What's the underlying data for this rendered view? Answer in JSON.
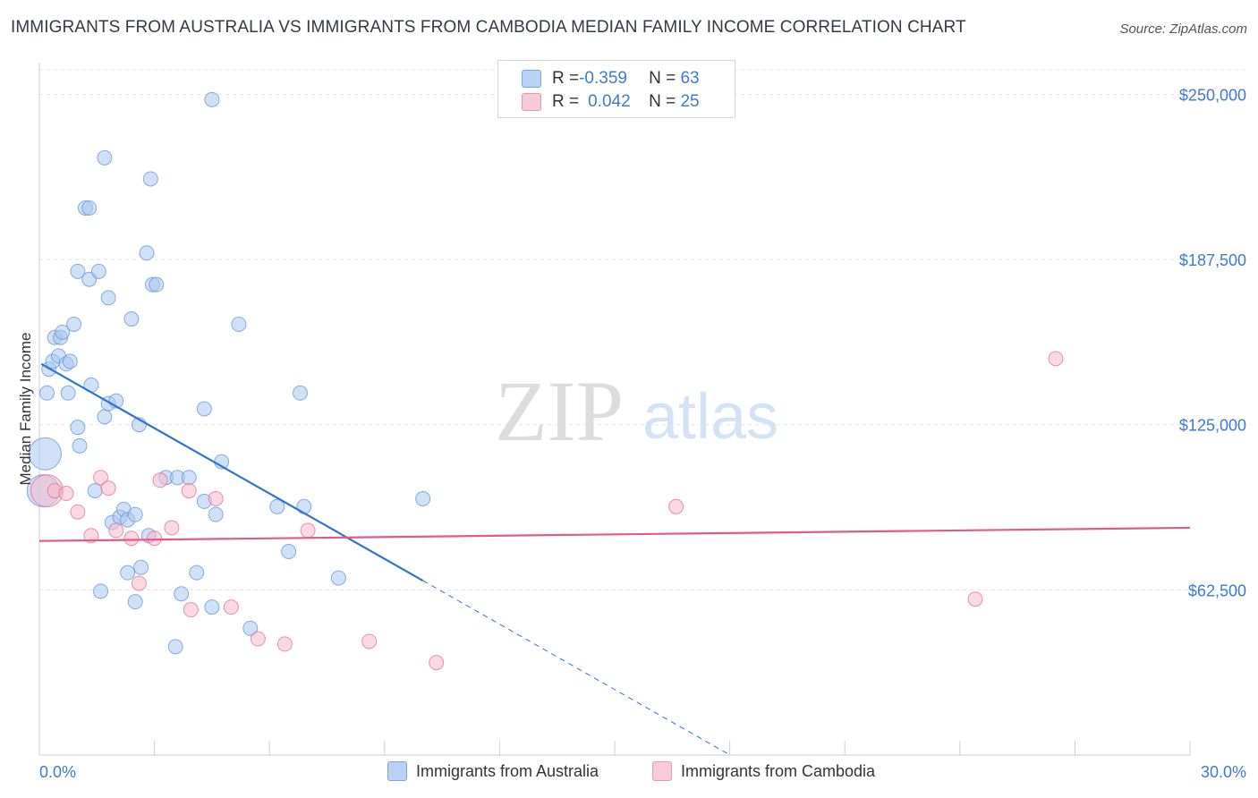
{
  "title": "IMMIGRANTS FROM AUSTRALIA VS IMMIGRANTS FROM CAMBODIA MEDIAN FAMILY INCOME CORRELATION CHART",
  "source": "Source: ZipAtlas.com",
  "watermark": {
    "zip": "ZIP",
    "atlas": "atlas"
  },
  "legend": {
    "rows": [
      {
        "r_label": "R = ",
        "r_value": "-0.359",
        "n_label": "N = ",
        "n_value": "63",
        "color": "#a9c7ef"
      },
      {
        "r_label": "R = ",
        "r_value": "0.042",
        "n_label": "N = ",
        "n_value": "25",
        "color": "#f6b9cc"
      }
    ]
  },
  "bottom_legend": [
    "Immigrants from Australia",
    "Immigrants from Cambodia"
  ],
  "chart_data": {
    "type": "scatter",
    "title": "IMMIGRANTS FROM AUSTRALIA VS IMMIGRANTS FROM CAMBODIA MEDIAN FAMILY INCOME CORRELATION CHART",
    "xlabel": "",
    "ylabel": "Median Family Income",
    "xlim": [
      0,
      30
    ],
    "ylim": [
      0,
      262000
    ],
    "x_tick_labels": [
      "0.0%",
      "30.0%"
    ],
    "y_ticks": [
      62500,
      125000,
      187500,
      250000
    ],
    "y_tick_labels": [
      "$62,500",
      "$125,000",
      "$187,500",
      "$250,000"
    ],
    "grid": true,
    "legend_position": "top-center",
    "series": [
      {
        "name": "Immigrants from Australia",
        "color": "#5b8fd8",
        "fill": "#a9c7ef",
        "trend": {
          "x0": 0.05,
          "y0": 148000,
          "x1": 10.0,
          "y1": 66000,
          "dash_to_x": 18.0
        },
        "points": [
          [
            0.15,
            114000,
            "large"
          ],
          [
            0.2,
            137000
          ],
          [
            0.25,
            146000
          ],
          [
            0.35,
            149000
          ],
          [
            0.4,
            158000
          ],
          [
            0.5,
            151000
          ],
          [
            0.55,
            158000
          ],
          [
            0.6,
            160000
          ],
          [
            0.7,
            148000
          ],
          [
            0.75,
            137000
          ],
          [
            0.8,
            149000
          ],
          [
            0.9,
            163000
          ],
          [
            1.0,
            124000
          ],
          [
            1.05,
            117000
          ],
          [
            1.0,
            183000
          ],
          [
            1.2,
            207000
          ],
          [
            1.3,
            207000
          ],
          [
            1.3,
            180000
          ],
          [
            1.35,
            140000
          ],
          [
            1.45,
            100000
          ],
          [
            1.55,
            183000
          ],
          [
            1.6,
            62000
          ],
          [
            1.7,
            128000
          ],
          [
            1.7,
            226000
          ],
          [
            1.8,
            133000
          ],
          [
            1.8,
            173000
          ],
          [
            1.9,
            88000
          ],
          [
            2.0,
            134000
          ],
          [
            2.1,
            90000
          ],
          [
            2.2,
            93000
          ],
          [
            2.3,
            89000
          ],
          [
            2.3,
            69000
          ],
          [
            2.4,
            165000
          ],
          [
            2.5,
            91000
          ],
          [
            2.5,
            58000
          ],
          [
            2.6,
            125000
          ],
          [
            2.65,
            71000
          ],
          [
            2.8,
            190000
          ],
          [
            2.85,
            83000
          ],
          [
            2.9,
            218000
          ],
          [
            2.95,
            178000
          ],
          [
            3.05,
            178000
          ],
          [
            3.3,
            105000
          ],
          [
            3.55,
            41000
          ],
          [
            3.6,
            105000
          ],
          [
            3.7,
            61000
          ],
          [
            3.9,
            105000
          ],
          [
            4.1,
            69000
          ],
          [
            4.3,
            131000
          ],
          [
            4.3,
            96000
          ],
          [
            4.5,
            56000
          ],
          [
            4.5,
            248000
          ],
          [
            4.6,
            91000
          ],
          [
            4.75,
            111000
          ],
          [
            5.2,
            163000
          ],
          [
            5.5,
            48000
          ],
          [
            6.2,
            94000
          ],
          [
            6.5,
            77000
          ],
          [
            6.8,
            137000
          ],
          [
            6.9,
            94000
          ],
          [
            7.8,
            67000
          ],
          [
            10.0,
            97000
          ],
          [
            0.1,
            100000,
            "large"
          ]
        ]
      },
      {
        "name": "Immigrants from Cambodia",
        "color": "#e36590",
        "fill": "#f6b9cc",
        "trend": {
          "x0": 0.0,
          "y0": 81000,
          "x1": 30.0,
          "y1": 86000
        },
        "points": [
          [
            0.2,
            100000,
            "large"
          ],
          [
            0.4,
            100000
          ],
          [
            0.7,
            99000
          ],
          [
            1.0,
            92000
          ],
          [
            1.35,
            83000
          ],
          [
            1.6,
            105000
          ],
          [
            1.8,
            101000
          ],
          [
            2.0,
            85000
          ],
          [
            2.4,
            82000
          ],
          [
            2.6,
            65000
          ],
          [
            3.0,
            82000
          ],
          [
            3.15,
            104000
          ],
          [
            3.45,
            86000
          ],
          [
            3.9,
            100000
          ],
          [
            3.95,
            55000
          ],
          [
            4.6,
            97000
          ],
          [
            5.0,
            56000
          ],
          [
            5.7,
            44000
          ],
          [
            6.4,
            42000
          ],
          [
            7.0,
            85000
          ],
          [
            8.6,
            43000
          ],
          [
            10.35,
            35000
          ],
          [
            16.6,
            94000
          ],
          [
            24.4,
            59000
          ],
          [
            26.5,
            150000
          ]
        ]
      }
    ]
  }
}
